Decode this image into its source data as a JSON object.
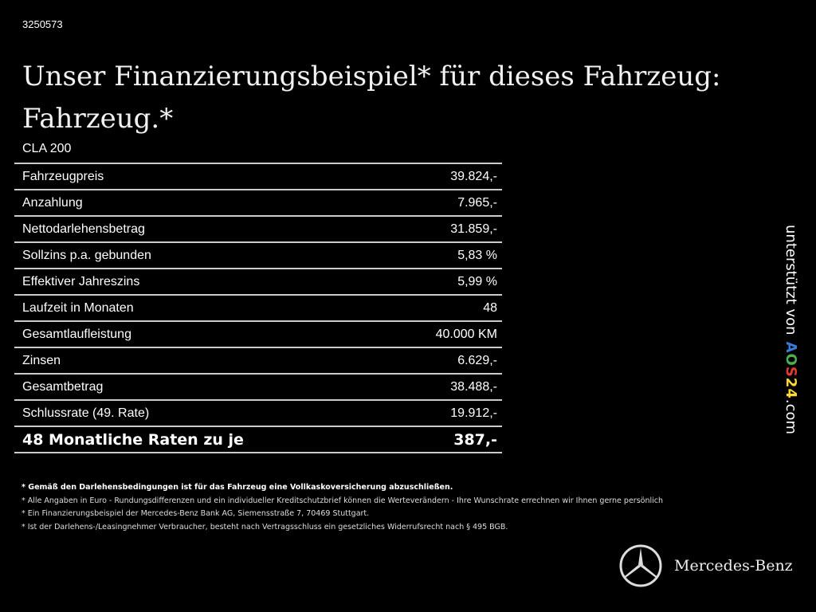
{
  "code": "3250573",
  "title_line1": "Unser Finanzierungsbeispiel* für dieses Fahrzeug:",
  "title_line2": "Fahrzeug.*",
  "model": "CLA 200",
  "rows": [
    {
      "label": "Fahrzeugpreis",
      "value": "39.824,-"
    },
    {
      "label": "Anzahlung",
      "value": "7.965,-"
    },
    {
      "label": "Nettodarlehensbetrag",
      "value": "31.859,-"
    },
    {
      "label": "Sollzins p.a. gebunden",
      "value": "5,83 %"
    },
    {
      "label": "Effektiver Jahreszins",
      "value": "5,99 %"
    },
    {
      "label": "Laufzeit in Monaten",
      "value": "48"
    },
    {
      "label": "Gesamtlaufleistung",
      "value": "40.000 KM"
    },
    {
      "label": "Zinsen",
      "value": "6.629,-"
    },
    {
      "label": "Gesamtbetrag",
      "value": "38.488,-"
    },
    {
      "label": "Schlussrate (49. Rate)",
      "value": "19.912,-"
    }
  ],
  "total": {
    "label": "48 Monatliche Raten zu je",
    "value": "387,-"
  },
  "notes": [
    "* Gemäß den Darlehensbedingungen ist für das Fahrzeug eine Vollkaskoversicherung abzuschließen.",
    "* Alle Angaben in Euro - Rundungsdifferenzen und ein individueller Kreditschutzbrief können die Werteverändern - Ihre Wunschrate errechnen wir Ihnen gerne persönlich",
    "* Ein Finanzierungsbeispiel der Mercedes-Benz Bank AG, Siemensstraße 7, 70469 Stuttgart.",
    "* Ist der Darlehens-/Leasingnehmer Verbraucher, besteht nach Vertragsschluss ein gesetzliches Widerrufsrecht nach § 495 BGB."
  ],
  "side": {
    "text": "unterstützt von",
    "brand_letters": [
      "A",
      "O",
      "S",
      "2",
      "4"
    ],
    "brand_colors": [
      "#3a7bd5",
      "#4caf50",
      "#e53935",
      "#fdd835",
      "#fdd835"
    ],
    "domain": ".com"
  },
  "logo": {
    "name": "Mercedes-Benz",
    "icon": "mercedes-star-icon"
  }
}
